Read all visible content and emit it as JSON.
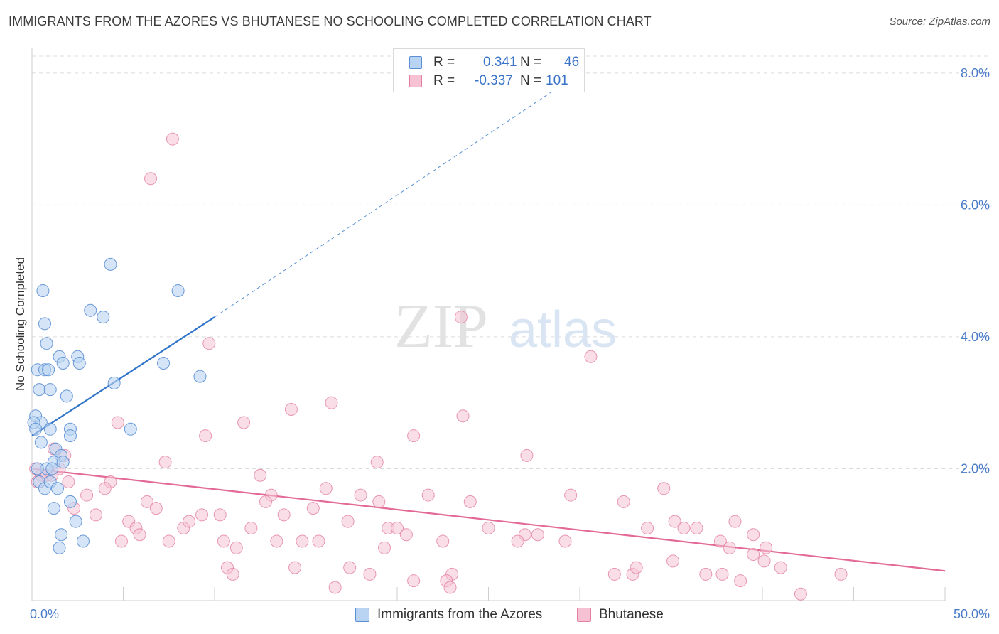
{
  "title": "IMMIGRANTS FROM THE AZORES VS BHUTANESE NO SCHOOLING COMPLETED CORRELATION CHART",
  "source": "Source: ZipAtlas.com",
  "watermark": {
    "zip": "ZIP",
    "atlas": "atlas"
  },
  "colors": {
    "blue_fill": "#b9d3f2",
    "blue_stroke": "#5b8fd4",
    "blue_line": "#2f74c9",
    "pink_fill": "#f6c2d3",
    "pink_stroke": "#e27fa3",
    "pink_line": "#e36a97",
    "tick": "#4a7bc8",
    "grid": "#dcdcdc"
  },
  "legend": {
    "rows": [
      {
        "r_label": "R =",
        "r_value": "0.341",
        "n_label": "N =",
        "n_value": "46"
      },
      {
        "r_label": "R =",
        "r_value": "-0.337",
        "n_label": "N =",
        "n_value": "101"
      }
    ]
  },
  "bottom_legend": {
    "series_a": "Immigrants from the Azores",
    "series_b": "Bhutanese"
  },
  "chart_data": {
    "type": "scatter",
    "title": "IMMIGRANTS FROM THE AZORES VS BHUTANESE NO SCHOOLING COMPLETED CORRELATION CHART",
    "xlabel": "",
    "ylabel": "No Schooling Completed",
    "xlim": [
      0,
      50
    ],
    "ylim": [
      0,
      8.3
    ],
    "x_tick_labels": [
      "0.0%",
      "50.0%"
    ],
    "y_ticks": [
      2,
      4,
      6,
      8
    ],
    "y_tick_labels": [
      "2.0%",
      "4.0%",
      "6.0%",
      "8.0%"
    ],
    "grid": true,
    "legend_position": "bottom-center",
    "series": [
      {
        "name": "Immigrants from the Azores",
        "r": 0.341,
        "n": 46,
        "trend": {
          "x0": 0,
          "y0": 2.5,
          "x1": 10,
          "y1": 4.3,
          "dash_to_x": 30,
          "dash_to_y": 8.0
        },
        "points": [
          [
            0.6,
            4.7
          ],
          [
            4.3,
            5.1
          ],
          [
            8.0,
            4.7
          ],
          [
            3.2,
            4.4
          ],
          [
            3.9,
            4.3
          ],
          [
            0.7,
            4.2
          ],
          [
            0.8,
            3.9
          ],
          [
            1.5,
            3.7
          ],
          [
            1.7,
            3.6
          ],
          [
            2.5,
            3.7
          ],
          [
            2.6,
            3.6
          ],
          [
            7.2,
            3.6
          ],
          [
            0.3,
            3.5
          ],
          [
            0.7,
            3.5
          ],
          [
            0.9,
            3.5
          ],
          [
            4.5,
            3.3
          ],
          [
            9.2,
            3.4
          ],
          [
            0.4,
            3.2
          ],
          [
            1.0,
            3.2
          ],
          [
            1.9,
            3.1
          ],
          [
            0.2,
            2.8
          ],
          [
            0.5,
            2.7
          ],
          [
            0.1,
            2.7
          ],
          [
            0.2,
            2.6
          ],
          [
            1.0,
            2.6
          ],
          [
            2.1,
            2.6
          ],
          [
            2.1,
            2.5
          ],
          [
            5.4,
            2.6
          ],
          [
            0.5,
            2.4
          ],
          [
            1.3,
            2.3
          ],
          [
            1.6,
            2.2
          ],
          [
            1.2,
            2.1
          ],
          [
            1.7,
            2.1
          ],
          [
            0.8,
            2.0
          ],
          [
            0.4,
            1.8
          ],
          [
            0.7,
            1.7
          ],
          [
            1.0,
            1.8
          ],
          [
            1.4,
            1.7
          ],
          [
            2.1,
            1.5
          ],
          [
            1.2,
            1.4
          ],
          [
            2.4,
            1.2
          ],
          [
            1.6,
            1.0
          ],
          [
            2.8,
            0.9
          ],
          [
            1.5,
            0.8
          ],
          [
            0.3,
            2.0
          ],
          [
            1.1,
            2.0
          ]
        ]
      },
      {
        "name": "Bhutanese",
        "r": -0.337,
        "n": 101,
        "trend": {
          "x0": 0,
          "y0": 2.0,
          "x1": 50,
          "y1": 0.45
        },
        "points": [
          [
            7.7,
            7.0
          ],
          [
            6.5,
            6.4
          ],
          [
            9.7,
            3.9
          ],
          [
            23.5,
            4.3
          ],
          [
            30.6,
            3.7
          ],
          [
            16.4,
            3.0
          ],
          [
            14.2,
            2.9
          ],
          [
            23.6,
            2.8
          ],
          [
            4.7,
            2.7
          ],
          [
            11.6,
            2.7
          ],
          [
            9.5,
            2.5
          ],
          [
            20.9,
            2.5
          ],
          [
            18.9,
            2.1
          ],
          [
            27.1,
            2.2
          ],
          [
            7.3,
            2.1
          ],
          [
            1.8,
            2.2
          ],
          [
            1.2,
            2.3
          ],
          [
            0.2,
            2.0
          ],
          [
            0.5,
            1.9
          ],
          [
            0.8,
            1.9
          ],
          [
            2.0,
            1.8
          ],
          [
            1.5,
            2.0
          ],
          [
            1.1,
            1.9
          ],
          [
            0.3,
            1.8
          ],
          [
            12.5,
            1.9
          ],
          [
            3.0,
            1.6
          ],
          [
            4.3,
            1.8
          ],
          [
            4.0,
            1.7
          ],
          [
            6.3,
            1.5
          ],
          [
            13.1,
            1.6
          ],
          [
            16.1,
            1.7
          ],
          [
            18.0,
            1.6
          ],
          [
            19.0,
            1.5
          ],
          [
            21.7,
            1.6
          ],
          [
            24.0,
            1.5
          ],
          [
            29.5,
            1.6
          ],
          [
            32.4,
            1.5
          ],
          [
            34.6,
            1.7
          ],
          [
            2.3,
            1.4
          ],
          [
            3.5,
            1.3
          ],
          [
            6.8,
            1.4
          ],
          [
            9.3,
            1.3
          ],
          [
            10.3,
            1.3
          ],
          [
            12.8,
            1.5
          ],
          [
            13.8,
            1.3
          ],
          [
            15.4,
            1.4
          ],
          [
            5.3,
            1.2
          ],
          [
            5.7,
            1.1
          ],
          [
            8.3,
            1.1
          ],
          [
            8.6,
            1.2
          ],
          [
            12.0,
            1.1
          ],
          [
            17.3,
            1.2
          ],
          [
            19.5,
            1.1
          ],
          [
            20.0,
            1.1
          ],
          [
            20.5,
            1.0
          ],
          [
            25.0,
            1.1
          ],
          [
            27.0,
            1.0
          ],
          [
            27.7,
            1.0
          ],
          [
            33.7,
            1.1
          ],
          [
            35.2,
            1.2
          ],
          [
            35.7,
            1.1
          ],
          [
            36.4,
            1.1
          ],
          [
            38.5,
            1.2
          ],
          [
            5.9,
            1.0
          ],
          [
            7.5,
            0.9
          ],
          [
            10.5,
            0.9
          ],
          [
            11.2,
            0.8
          ],
          [
            14.8,
            0.9
          ],
          [
            15.7,
            0.9
          ],
          [
            22.5,
            0.9
          ],
          [
            26.6,
            0.9
          ],
          [
            29.2,
            0.9
          ],
          [
            39.5,
            1.0
          ],
          [
            40.2,
            0.8
          ],
          [
            4.9,
            0.9
          ],
          [
            13.4,
            0.9
          ],
          [
            19.3,
            0.8
          ],
          [
            37.7,
            0.9
          ],
          [
            38.2,
            0.8
          ],
          [
            39.5,
            0.7
          ],
          [
            35.1,
            0.6
          ],
          [
            40.1,
            0.6
          ],
          [
            41.0,
            0.5
          ],
          [
            17.4,
            0.5
          ],
          [
            14.4,
            0.5
          ],
          [
            10.7,
            0.5
          ],
          [
            11.0,
            0.4
          ],
          [
            18.5,
            0.4
          ],
          [
            20.9,
            0.3
          ],
          [
            23.0,
            0.4
          ],
          [
            22.7,
            0.3
          ],
          [
            31.9,
            0.4
          ],
          [
            32.9,
            0.4
          ],
          [
            33.1,
            0.5
          ],
          [
            36.9,
            0.4
          ],
          [
            37.8,
            0.4
          ],
          [
            38.8,
            0.3
          ],
          [
            44.3,
            0.4
          ],
          [
            16.6,
            0.2
          ],
          [
            22.9,
            0.2
          ],
          [
            42.1,
            0.1
          ]
        ]
      }
    ]
  }
}
